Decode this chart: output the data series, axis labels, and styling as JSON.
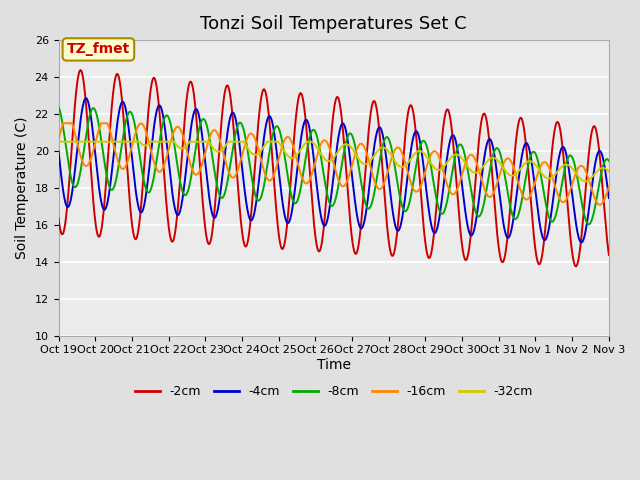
{
  "title": "Tonzi Soil Temperatures Set C",
  "xlabel": "Time",
  "ylabel": "Soil Temperature (C)",
  "ylim": [
    10,
    26
  ],
  "n_days": 15,
  "annotation": "TZ_fmet",
  "annotation_color": "#cc0000",
  "annotation_bg": "#ffffcc",
  "series_colors": {
    "-2cm": "#cc0000",
    "-4cm": "#0000cc",
    "-8cm": "#00aa00",
    "-16cm": "#ff8800",
    "-32cm": "#cccc00"
  },
  "series_labels": [
    "-2cm",
    "-4cm",
    "-8cm",
    "-16cm",
    "-32cm"
  ],
  "tick_positions": [
    0,
    1,
    2,
    3,
    4,
    5,
    6,
    7,
    8,
    9,
    10,
    11,
    12,
    13,
    14,
    15
  ],
  "tick_labels": [
    "Oct 19",
    "Oct 20",
    "Oct 21",
    "Oct 22",
    "Oct 23",
    "Oct 24",
    "Oct 25",
    "Oct 26",
    "Oct 27",
    "Oct 28",
    "Oct 29",
    "Oct 30",
    "Oct 31",
    "Nov 1",
    "Nov 2",
    "Nov 3"
  ],
  "background_color": "#e0e0e0",
  "plot_bg_color": "#ebebeb",
  "grid_color": "#ffffff",
  "title_fontsize": 13,
  "axis_label_fontsize": 10,
  "tick_fontsize": 8,
  "legend_fontsize": 9
}
